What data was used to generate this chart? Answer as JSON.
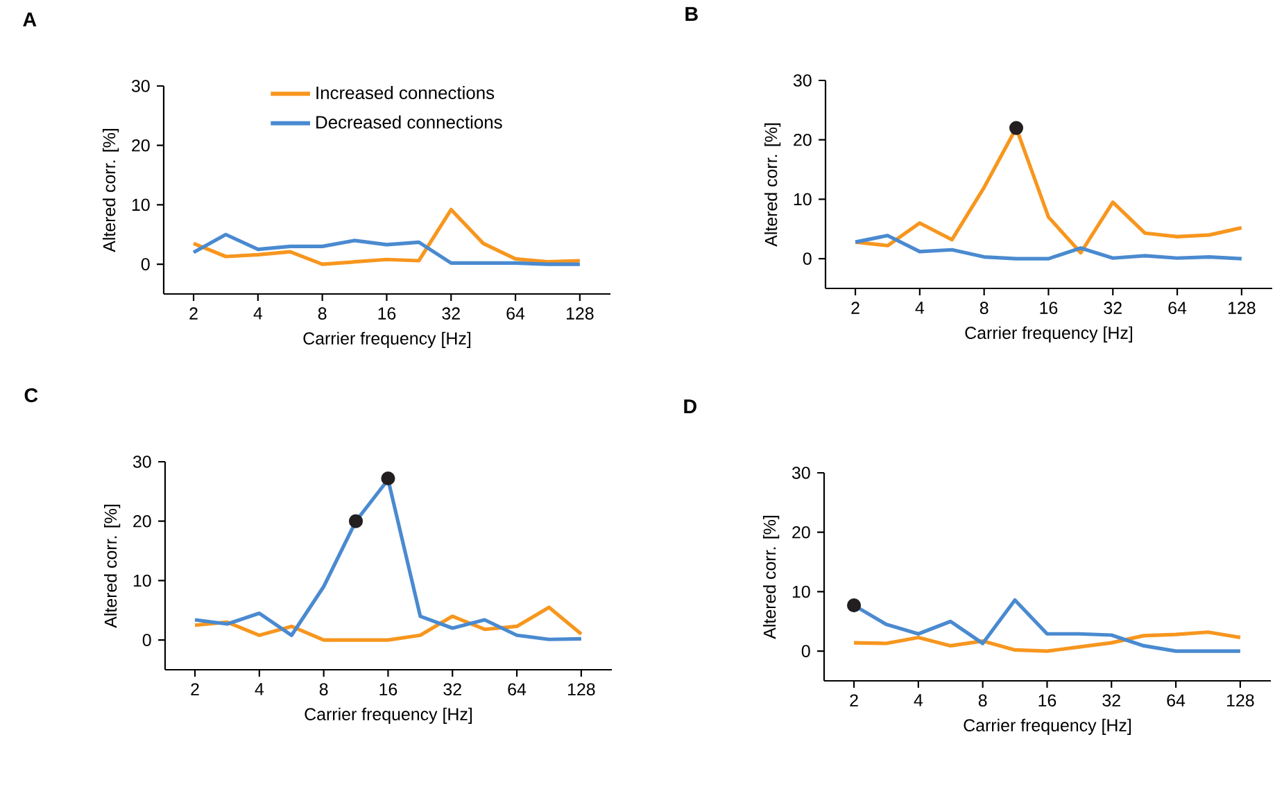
{
  "chart_data": [
    {
      "type": "line",
      "title": "A",
      "xlabel": "Carrier frequency [Hz]",
      "ylabel": "Altered corr. [%]",
      "log": "x",
      "legend": "top",
      "x": [
        2,
        2.83,
        4,
        5.66,
        8,
        11.31,
        16,
        22.63,
        32,
        45.25,
        64,
        90.51,
        128
      ],
      "xlim": [
        1.45,
        178
      ],
      "xticks": [
        2,
        4,
        8,
        16,
        32,
        64,
        128
      ],
      "ylim": [
        -5,
        30
      ],
      "yticks": [
        0,
        10,
        20,
        30
      ],
      "series": [
        {
          "name": "Increased connections",
          "color": "#f7961e",
          "values": [
            3.5,
            1.3,
            1.6,
            2.1,
            0,
            0.4,
            0.8,
            0.6,
            9.2,
            3.5,
            0.9,
            0.4,
            0.6
          ]
        },
        {
          "name": "Decreased connections",
          "color": "#4a8ad0",
          "values": [
            2,
            5,
            2.5,
            3,
            3,
            4,
            3.3,
            3.7,
            0.2,
            0.2,
            0.2,
            0,
            0
          ]
        }
      ]
    },
    {
      "type": "line",
      "title": "B",
      "xlabel": "Carrier frequency [Hz]",
      "ylabel": "Altered corr. [%]",
      "log": "x",
      "x": [
        2,
        2.83,
        4,
        5.66,
        8,
        11.31,
        16,
        22.63,
        32,
        45.25,
        64,
        90.51,
        128
      ],
      "xlim": [
        1.45,
        178
      ],
      "xticks": [
        2,
        4,
        8,
        16,
        32,
        64,
        128
      ],
      "ylim": [
        -5,
        30
      ],
      "yticks": [
        0,
        10,
        20,
        30
      ],
      "series": [
        {
          "color": "#f7961e",
          "values": [
            2.8,
            2.2,
            6,
            3.2,
            12,
            22,
            7,
            1,
            9.5,
            4.3,
            3.7,
            4,
            5.2
          ]
        },
        {
          "color": "#4a8ad0",
          "values": [
            2.8,
            3.9,
            1.2,
            1.5,
            0.3,
            0,
            0,
            1.8,
            0.1,
            0.5,
            0.1,
            0.3,
            0
          ]
        },
        {
          "type": "scatter",
          "marker": "circle",
          "color": "#231f20",
          "x": [
            11.31
          ],
          "values": [
            22
          ]
        }
      ]
    },
    {
      "type": "line",
      "title": "C",
      "xlabel": "Carrier frequency [Hz]",
      "ylabel": "Altered corr. [%]",
      "log": "x",
      "x": [
        2,
        2.83,
        4,
        5.66,
        8,
        11.31,
        16,
        22.63,
        32,
        45.25,
        64,
        90.51,
        128
      ],
      "xlim": [
        1.45,
        178
      ],
      "xticks": [
        2,
        4,
        8,
        16,
        32,
        64,
        128
      ],
      "ylim": [
        -5,
        30
      ],
      "yticks": [
        0,
        10,
        20,
        30
      ],
      "series": [
        {
          "color": "#f7961e",
          "values": [
            2.5,
            3,
            0.8,
            2.3,
            0,
            0,
            0,
            0.8,
            4,
            1.8,
            2.3,
            5.5,
            1
          ]
        },
        {
          "color": "#4a8ad0",
          "values": [
            3.4,
            2.7,
            4.5,
            0.8,
            9,
            20,
            27,
            4,
            2,
            3.4,
            0.8,
            0.1,
            0.2
          ]
        },
        {
          "type": "scatter",
          "marker": "circle",
          "color": "#231f20",
          "x": [
            11.31,
            16
          ],
          "values": [
            20,
            27.2
          ]
        }
      ]
    },
    {
      "type": "line",
      "title": "D",
      "xlabel": "Carrier frequency [Hz]",
      "ylabel": "Altered corr. [%]",
      "log": "x",
      "x": [
        2,
        2.83,
        4,
        5.66,
        8,
        11.31,
        16,
        22.63,
        32,
        45.25,
        64,
        90.51,
        128
      ],
      "xlim": [
        1.45,
        178
      ],
      "xticks": [
        2,
        4,
        8,
        16,
        32,
        64,
        128
      ],
      "ylim": [
        -5,
        30
      ],
      "yticks": [
        0,
        10,
        20,
        30
      ],
      "series": [
        {
          "color": "#f7961e",
          "values": [
            1.4,
            1.3,
            2.3,
            0.9,
            1.7,
            0.2,
            0,
            0.7,
            1.4,
            2.6,
            2.8,
            3.2,
            2.3
          ]
        },
        {
          "color": "#4a8ad0",
          "values": [
            7.7,
            4.5,
            2.9,
            5,
            1.3,
            8.6,
            2.9,
            2.9,
            2.7,
            0.9,
            0,
            0,
            0
          ]
        },
        {
          "type": "scatter",
          "marker": "circle",
          "color": "#231f20",
          "x": [
            2
          ],
          "values": [
            7.7
          ]
        }
      ]
    }
  ]
}
